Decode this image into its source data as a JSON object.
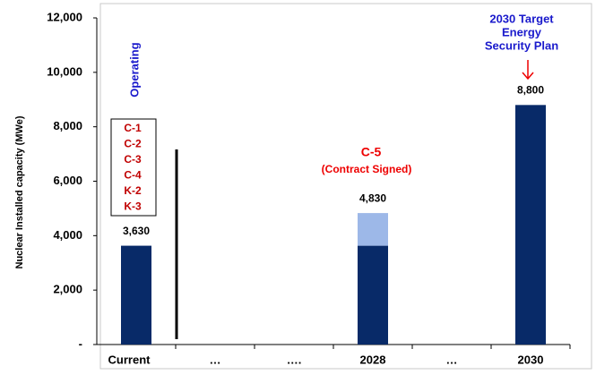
{
  "chart_data": {
    "type": "bar",
    "y_label": "Nuclear Installed capacity (MWe)",
    "categories": [
      "Current",
      "…",
      "….",
      "2028",
      "…",
      "2030"
    ],
    "series": [
      {
        "color": "#082a68",
        "values": [
          3630,
          null,
          null,
          3630,
          null,
          8800
        ]
      },
      {
        "color": "#9db8e8",
        "values": [
          null,
          null,
          null,
          1200,
          null,
          null
        ]
      }
    ],
    "totals": [
      3630,
      null,
      null,
      4830,
      null,
      8800
    ],
    "total_labels": [
      "3,630",
      null,
      null,
      "4,830",
      null,
      "8,800"
    ],
    "ylim": [
      0,
      12000
    ],
    "yticks": [
      {
        "value": 0,
        "label": "-"
      },
      {
        "value": 2000,
        "label": "2,000"
      },
      {
        "value": 4000,
        "label": "4,000"
      },
      {
        "value": 6000,
        "label": "6,000"
      },
      {
        "value": 8000,
        "label": "8,000"
      },
      {
        "value": 10000,
        "label": "10,000"
      },
      {
        "value": 12000,
        "label": "12,000"
      }
    ],
    "annotations": {
      "operating": "Operating",
      "plants": [
        "C-1",
        "C-2",
        "C-3",
        "C-4",
        "K-2",
        "K-3"
      ],
      "c5": "C-5",
      "c5_note": "(Contract Signed)",
      "target": [
        "2030 Target",
        "Energy",
        "Security Plan"
      ]
    }
  }
}
